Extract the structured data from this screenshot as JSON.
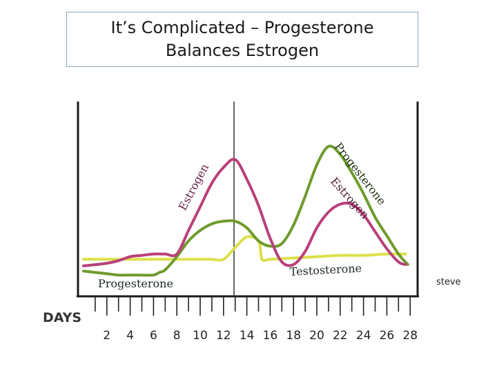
{
  "slide": {
    "title_line1": "It’s Complicated – Progesterone",
    "title_line2": "Balances Estrogen",
    "side_note": "steve"
  },
  "chart_data": {
    "type": "line",
    "title": "It’s Complicated – Progesterone Balances Estrogen",
    "xlabel": "DAYS",
    "ylabel": "",
    "x_ticks": [
      2,
      4,
      6,
      8,
      10,
      12,
      14,
      16,
      18,
      20,
      22,
      24,
      26,
      28
    ],
    "xlim": [
      0,
      28
    ],
    "ylim": [
      0,
      100
    ],
    "y_axis_values_shown": false,
    "grid": false,
    "legend": "none",
    "ovulation_marker_day": 14,
    "series": [
      {
        "name": "Estrogen",
        "color": "#b8407a",
        "label_day": 8.3,
        "label_rotation": -62,
        "x": [
          0,
          2,
          3,
          4,
          5,
          6,
          7,
          8,
          9,
          10,
          11,
          12,
          13,
          14,
          15,
          16,
          17,
          18,
          19,
          20,
          21,
          22,
          23,
          24,
          25,
          26,
          27,
          27.6
        ],
        "y": [
          9,
          11,
          13,
          16,
          17,
          18,
          18,
          18,
          36,
          54,
          72,
          84,
          90,
          75,
          55,
          30,
          12,
          10,
          20,
          38,
          50,
          56,
          56,
          48,
          35,
          22,
          12,
          10
        ]
      },
      {
        "name": "Progesterone",
        "color": "#6e9b2c",
        "label_day": 22,
        "label_rotation": 50,
        "x": [
          0,
          2,
          3,
          4,
          5,
          6,
          6.5,
          7,
          8,
          9,
          10,
          11,
          12,
          13,
          14,
          15,
          16,
          17,
          18,
          19,
          20,
          21,
          22,
          23,
          24,
          25,
          26,
          27,
          27.8
        ],
        "y": [
          5,
          3,
          2,
          2,
          2,
          2,
          4,
          6,
          16,
          28,
          36,
          41,
          43,
          43,
          38,
          28,
          24,
          26,
          40,
          62,
          86,
          100,
          94,
          80,
          64,
          46,
          32,
          18,
          10
        ]
      },
      {
        "name": "Testosterone",
        "color": "#dbe04a",
        "label_day": 19,
        "label_rotation": -3,
        "x": [
          0,
          3,
          6,
          8,
          10,
          11,
          12,
          13,
          14,
          15,
          15.3,
          16,
          18,
          20,
          22,
          24,
          26,
          27.6
        ],
        "y": [
          14,
          14,
          14,
          14,
          14,
          14,
          14,
          23,
          31,
          28,
          14,
          14,
          15,
          16,
          17,
          17,
          18,
          18
        ]
      }
    ]
  }
}
